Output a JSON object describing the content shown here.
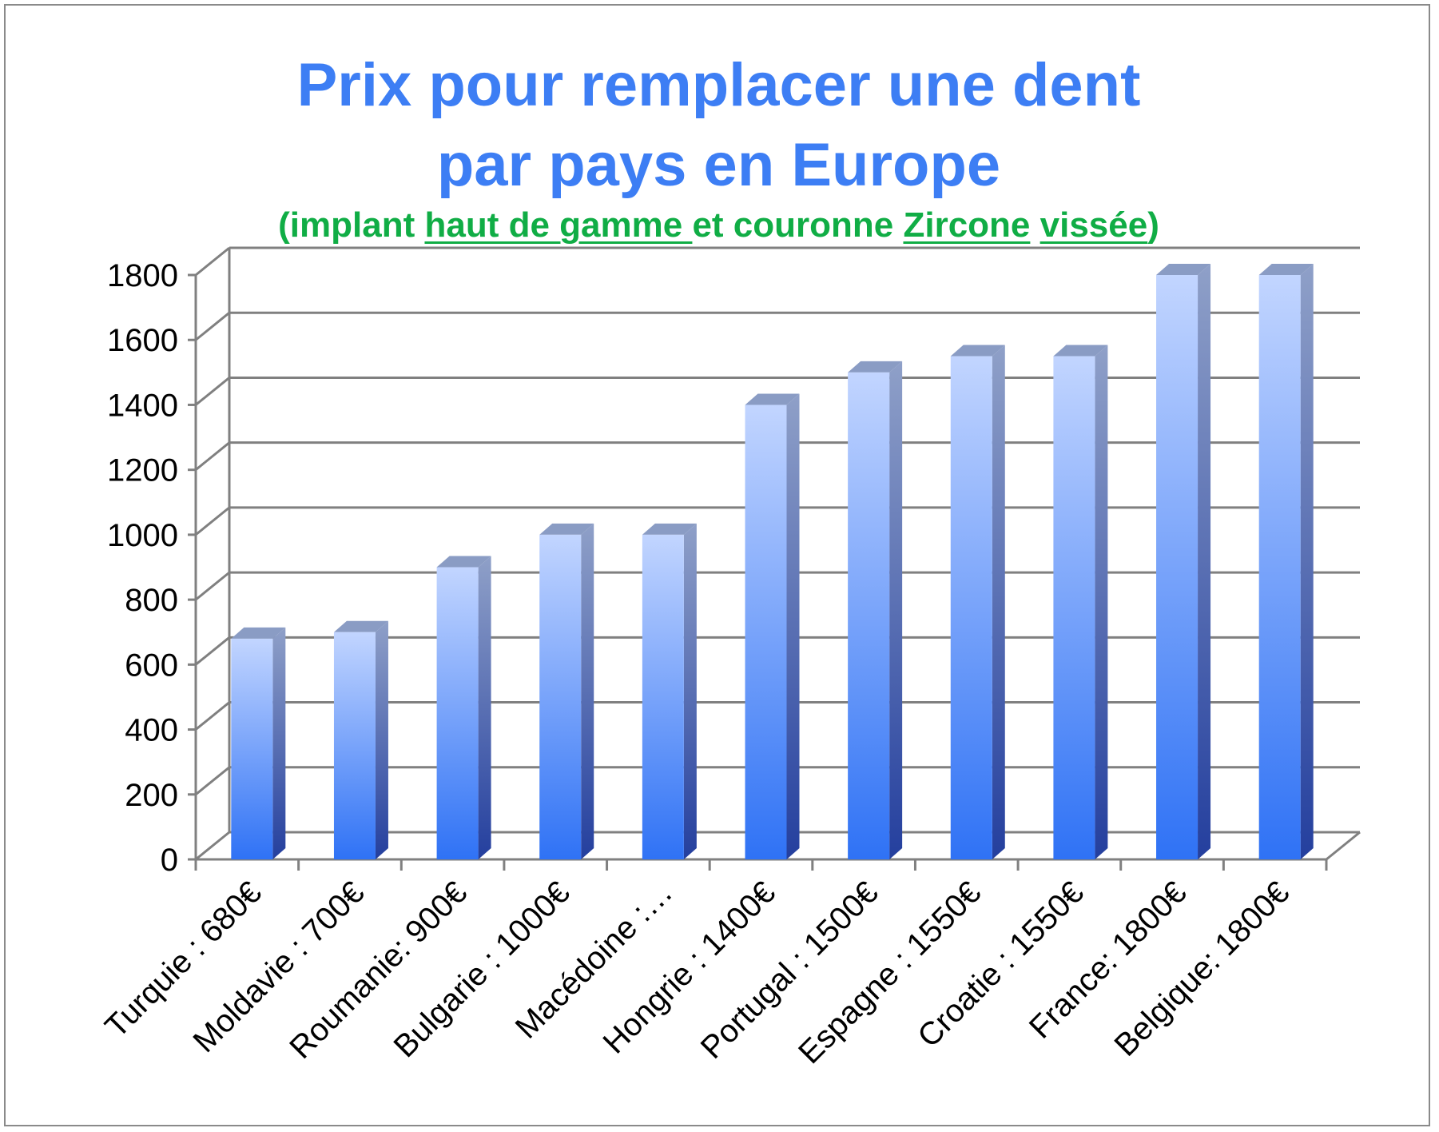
{
  "chart_data": {
    "type": "bar",
    "title_lines": [
      "Prix pour remplacer une dent",
      "par pays en Europe"
    ],
    "subtitle": {
      "prefix": "(implant ",
      "underlined_1": "haut de gamme ",
      "middle": "et couronne ",
      "underlined_2": "Zircone",
      "space": " ",
      "underlined_3": "vissée",
      "suffix": ")"
    },
    "categories": [
      "Turquie : 680€",
      "Moldavie : 700€",
      "Roumanie: 900€",
      "Bulgarie : 1000€",
      "Macédoine :…",
      "Hongrie : 1400€",
      "Portugal : 1500€",
      "Espagne : 1550€",
      "Croatie : 1550€",
      "France: 1800€",
      "Belgique: 1800€"
    ],
    "values": [
      680,
      700,
      900,
      1000,
      1000,
      1400,
      1500,
      1550,
      1550,
      1800,
      1800
    ],
    "yticks": [
      "0",
      "200",
      "400",
      "600",
      "800",
      "1000",
      "1200",
      "1400",
      "1600",
      "1800"
    ],
    "ylim": [
      0,
      1800
    ],
    "grid": true,
    "legend": "none",
    "colors": {
      "title": "#3d7ef4",
      "subtitle": "#10ad45",
      "bar_top": "#c2d5ff",
      "bar_bottom": "#2f72f5",
      "bar_side": "#243f9e",
      "grid": "#808080"
    }
  }
}
